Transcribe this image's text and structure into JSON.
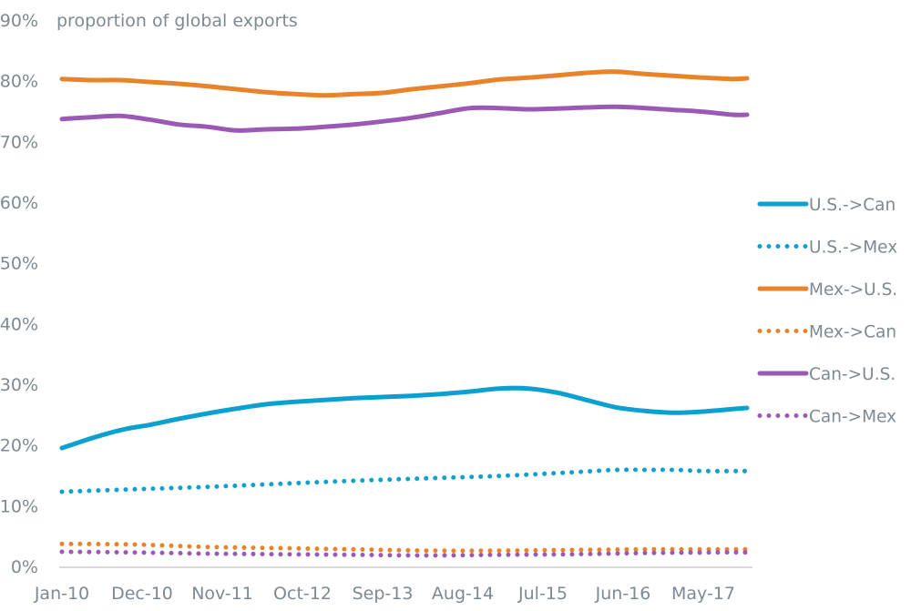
{
  "chart_data": {
    "type": "line",
    "title": "proportion of global exports",
    "xlabel": "",
    "ylabel": "proportion of global exports",
    "ylim": [
      0,
      90
    ],
    "yticks": [
      "0%",
      "10%",
      "20%",
      "30%",
      "40%",
      "50%",
      "60%",
      "70%",
      "80%",
      "90%"
    ],
    "ytick_values": [
      0,
      10,
      20,
      30,
      40,
      50,
      60,
      70,
      80,
      90
    ],
    "xticks": [
      "Jan-10",
      "Dec-10",
      "Nov-11",
      "Oct-12",
      "Sep-13",
      "Aug-14",
      "Jul-15",
      "Jun-16",
      "May-17"
    ],
    "xtick_month_index": [
      0,
      11,
      22,
      33,
      44,
      55,
      66,
      77,
      88
    ],
    "x_month_range": [
      0,
      94
    ],
    "grid": false,
    "legend_position": "right",
    "series": [
      {
        "name": "U.S.->Can",
        "color": "#0ba0cf",
        "style": "solid",
        "x": [
          0,
          3,
          6,
          9,
          12,
          16,
          20,
          24,
          28,
          32,
          36,
          40,
          44,
          48,
          52,
          56,
          60,
          64,
          68,
          72,
          76,
          80,
          84,
          88,
          92,
          94
        ],
        "values": [
          19.5,
          20.7,
          21.8,
          22.7,
          23.3,
          24.3,
          25.2,
          26.0,
          26.7,
          27.1,
          27.4,
          27.7,
          27.9,
          28.1,
          28.4,
          28.8,
          29.3,
          29.3,
          28.6,
          27.4,
          26.2,
          25.6,
          25.3,
          25.5,
          25.9,
          26.1
        ]
      },
      {
        "name": "U.S.->Mex",
        "color": "#0ba0cf",
        "style": "dotted",
        "x": [
          0,
          10,
          20,
          30,
          40,
          50,
          60,
          70,
          76,
          80,
          84,
          88,
          92,
          94
        ],
        "values": [
          12.3,
          12.7,
          13.1,
          13.6,
          14.1,
          14.5,
          14.9,
          15.5,
          15.9,
          15.9,
          15.9,
          15.7,
          15.7,
          15.7
        ]
      },
      {
        "name": "Mex->U.S.",
        "color": "#e9832a",
        "style": "solid",
        "x": [
          0,
          4,
          8,
          12,
          16,
          20,
          24,
          28,
          32,
          36,
          40,
          44,
          48,
          52,
          56,
          60,
          64,
          68,
          72,
          76,
          80,
          84,
          88,
          92,
          94
        ],
        "values": [
          80.3,
          80.1,
          80.1,
          79.8,
          79.5,
          79.1,
          78.6,
          78.1,
          77.8,
          77.6,
          77.8,
          78.0,
          78.6,
          79.1,
          79.6,
          80.2,
          80.5,
          80.9,
          81.3,
          81.5,
          81.1,
          80.8,
          80.5,
          80.3,
          80.4
        ]
      },
      {
        "name": "Mex->Can",
        "color": "#e9832a",
        "style": "dotted",
        "x": [
          0,
          10,
          20,
          30,
          40,
          50,
          60,
          70,
          80,
          90,
          94
        ],
        "values": [
          3.7,
          3.6,
          3.2,
          3.0,
          2.8,
          2.6,
          2.6,
          2.7,
          2.8,
          2.8,
          2.8
        ]
      },
      {
        "name": "Can->U.S.",
        "color": "#9b59b6",
        "style": "solid",
        "x": [
          0,
          4,
          8,
          12,
          16,
          20,
          24,
          28,
          32,
          36,
          40,
          44,
          48,
          52,
          56,
          60,
          64,
          68,
          72,
          76,
          80,
          84,
          88,
          92,
          94
        ],
        "values": [
          73.7,
          74.0,
          74.2,
          73.6,
          72.8,
          72.4,
          71.8,
          72.0,
          72.1,
          72.4,
          72.8,
          73.3,
          73.9,
          74.7,
          75.5,
          75.5,
          75.3,
          75.4,
          75.6,
          75.7,
          75.5,
          75.2,
          74.9,
          74.4,
          74.4
        ]
      },
      {
        "name": "Can->Mex",
        "color": "#9b59b6",
        "style": "dotted",
        "x": [
          0,
          10,
          20,
          30,
          40,
          50,
          60,
          70,
          80,
          90,
          94
        ],
        "values": [
          2.4,
          2.3,
          2.1,
          2.0,
          1.9,
          1.8,
          1.9,
          2.0,
          2.2,
          2.3,
          2.3
        ]
      }
    ]
  }
}
